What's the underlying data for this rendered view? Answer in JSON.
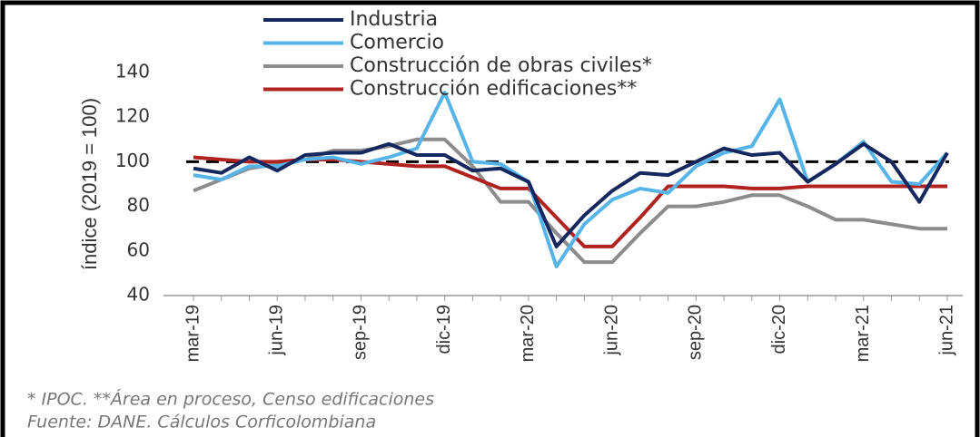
{
  "chart_data": {
    "type": "line",
    "y_label": "índice (2019 = 100)",
    "categories": [
      "mar-19",
      null,
      null,
      "jun-19",
      null,
      null,
      "sep-19",
      null,
      null,
      "dic-19",
      null,
      null,
      "mar-20",
      null,
      null,
      "jun-20",
      null,
      null,
      "sep-20",
      null,
      null,
      "dic-20",
      null,
      null,
      "mar-21",
      null,
      null,
      "jun-21"
    ],
    "series": [
      {
        "name": "Industria",
        "color": "#14275e",
        "values": [
          97,
          95,
          102,
          96,
          103,
          104,
          104,
          108,
          103,
          103,
          96,
          97,
          91,
          62,
          76,
          87,
          95,
          94,
          100,
          106,
          103,
          104,
          91,
          99,
          108,
          100,
          82,
          104
        ]
      },
      {
        "name": "Comercio",
        "color": "#56b4e9",
        "values": [
          94,
          92,
          98,
          98,
          101,
          102,
          99,
          102,
          106,
          131,
          100,
          99,
          91,
          53,
          72,
          83,
          88,
          86,
          98,
          104,
          107,
          128,
          91,
          99,
          109,
          91,
          90,
          104
        ]
      },
      {
        "name": "Construcción de obras civiles*",
        "color": "#8c8c8c",
        "values": [
          87,
          92,
          97,
          99,
          101,
          105,
          105,
          107,
          110,
          110,
          98,
          82,
          82,
          68,
          55,
          55,
          68,
          80,
          80,
          82,
          85,
          85,
          80,
          74,
          74,
          72,
          70,
          70
        ]
      },
      {
        "name": "Construcción edificaciones**",
        "color": "#b0221f",
        "values": [
          102,
          101,
          100,
          100,
          101,
          101,
          100,
          99,
          98,
          98,
          93,
          88,
          88,
          75,
          62,
          62,
          75,
          89,
          89,
          89,
          88,
          88,
          89,
          89,
          89,
          89,
          89,
          89
        ]
      }
    ],
    "reference_line": 100,
    "ylim": [
      40,
      140
    ],
    "yticks": [
      40,
      60,
      80,
      100,
      120,
      140
    ],
    "notes": [
      "* IPOC. **Área en proceso, Censo edificaciones",
      "Fuente: DANE. Cálculos Corficolombiana"
    ]
  }
}
